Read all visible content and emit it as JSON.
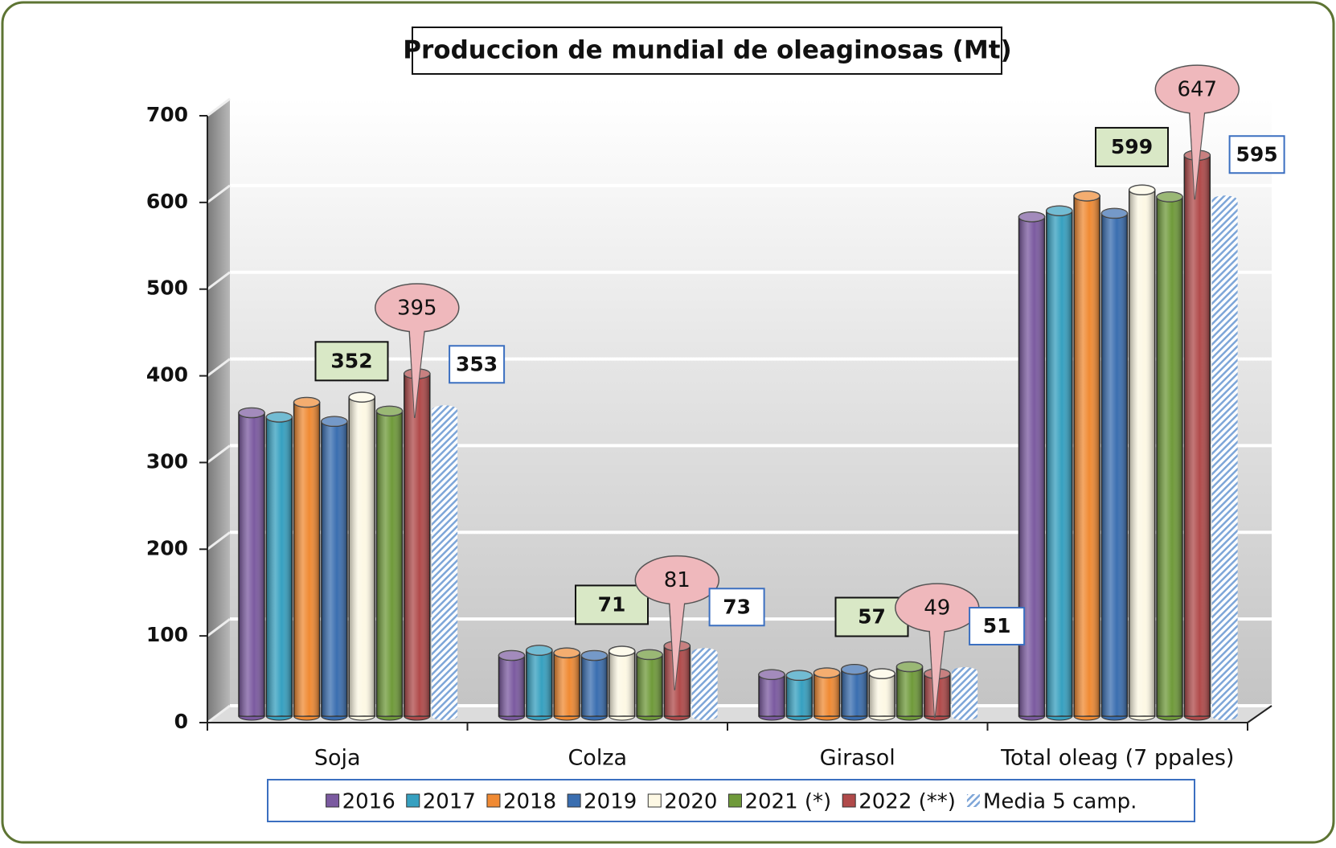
{
  "chart_data": {
    "type": "bar",
    "title": "Produccion de mundial de oleaginosas (Mt)",
    "categories": [
      "Soja",
      "Colza",
      "Girasol",
      "Total oleag (7 ppales)"
    ],
    "series": [
      {
        "name": "2016",
        "color": "#7b5aa0",
        "values": [
          350,
          70,
          48,
          576
        ]
      },
      {
        "name": "2017",
        "color": "#36a0c0",
        "values": [
          345,
          76,
          47,
          583
        ]
      },
      {
        "name": "2018",
        "color": "#f08a33",
        "values": [
          362,
          73,
          50,
          600
        ]
      },
      {
        "name": "2019",
        "color": "#3a6eb0",
        "values": [
          340,
          70,
          54,
          580
        ]
      },
      {
        "name": "2020",
        "color": "#fdf8e4",
        "values": [
          368,
          75,
          49,
          607
        ]
      },
      {
        "name": "2021 (*)",
        "color": "#6f9a3a",
        "values": [
          352,
          71,
          57,
          599
        ],
        "data_labels": true
      },
      {
        "name": "2022 (**)",
        "color": "#b04a4a",
        "values": [
          395,
          81,
          49,
          647
        ],
        "data_labels": true
      },
      {
        "name": "Media 5 camp.",
        "color": "#9fbde0",
        "values": [
          353,
          73,
          51,
          595
        ],
        "data_labels": true
      }
    ],
    "ylim": [
      0,
      700
    ],
    "yticks": [
      0,
      100,
      200,
      300,
      400,
      500,
      600,
      700
    ],
    "grid": true
  }
}
